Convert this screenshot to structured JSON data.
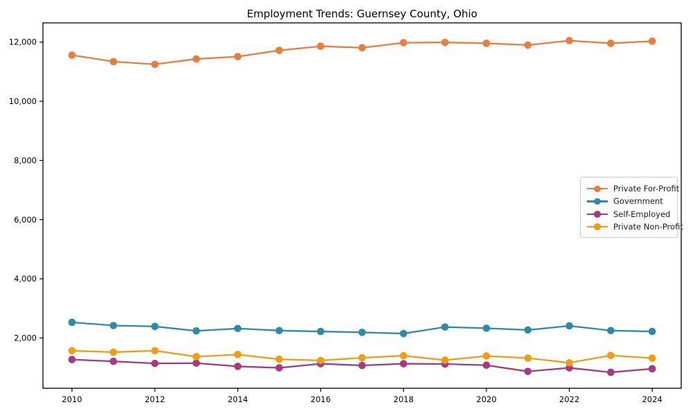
{
  "chart_data": {
    "type": "line",
    "title": "Employment Trends: Guernsey County, Ohio",
    "xlabel": "",
    "ylabel": "",
    "grid": false,
    "legend_position": "center right",
    "x": [
      2010,
      2011,
      2012,
      2013,
      2014,
      2015,
      2016,
      2017,
      2018,
      2019,
      2020,
      2021,
      2022,
      2023,
      2024
    ],
    "series": [
      {
        "name": "Private For-Profit",
        "color": "#e87d3e",
        "values": [
          11560,
          11340,
          11250,
          11430,
          11510,
          11720,
          11860,
          11810,
          11980,
          11990,
          11960,
          11900,
          12050,
          11960,
          12030
        ]
      },
      {
        "name": "Government",
        "color": "#2e8ba8",
        "values": [
          2530,
          2420,
          2390,
          2240,
          2320,
          2250,
          2220,
          2190,
          2150,
          2370,
          2330,
          2270,
          2410,
          2250,
          2220
        ]
      },
      {
        "name": "Self-Employed",
        "color": "#a63a7f",
        "values": [
          1270,
          1210,
          1140,
          1150,
          1040,
          990,
          1130,
          1070,
          1130,
          1120,
          1080,
          870,
          990,
          840,
          960
        ]
      },
      {
        "name": "Private Non-Profit",
        "color": "#f09d12",
        "values": [
          1570,
          1520,
          1570,
          1370,
          1440,
          1280,
          1240,
          1330,
          1400,
          1250,
          1390,
          1320,
          1160,
          1410,
          1320
        ]
      }
    ],
    "xticks": {
      "values": [
        2010,
        2012,
        2014,
        2016,
        2018,
        2020,
        2022,
        2024
      ],
      "labels": [
        "2010",
        "2012",
        "2014",
        "2016",
        "2018",
        "2020",
        "2022",
        "2024"
      ]
    },
    "yticks": {
      "values": [
        2000,
        4000,
        6000,
        8000,
        10000,
        12000
      ],
      "labels": [
        "2,000",
        "4,000",
        "6,000",
        "8,000",
        "10,000",
        "12,000"
      ]
    },
    "xlim": [
      2009.3,
      2024.7
    ],
    "ylim": [
      300,
      12650
    ],
    "axis_color": "#000000",
    "marker": "circle"
  }
}
